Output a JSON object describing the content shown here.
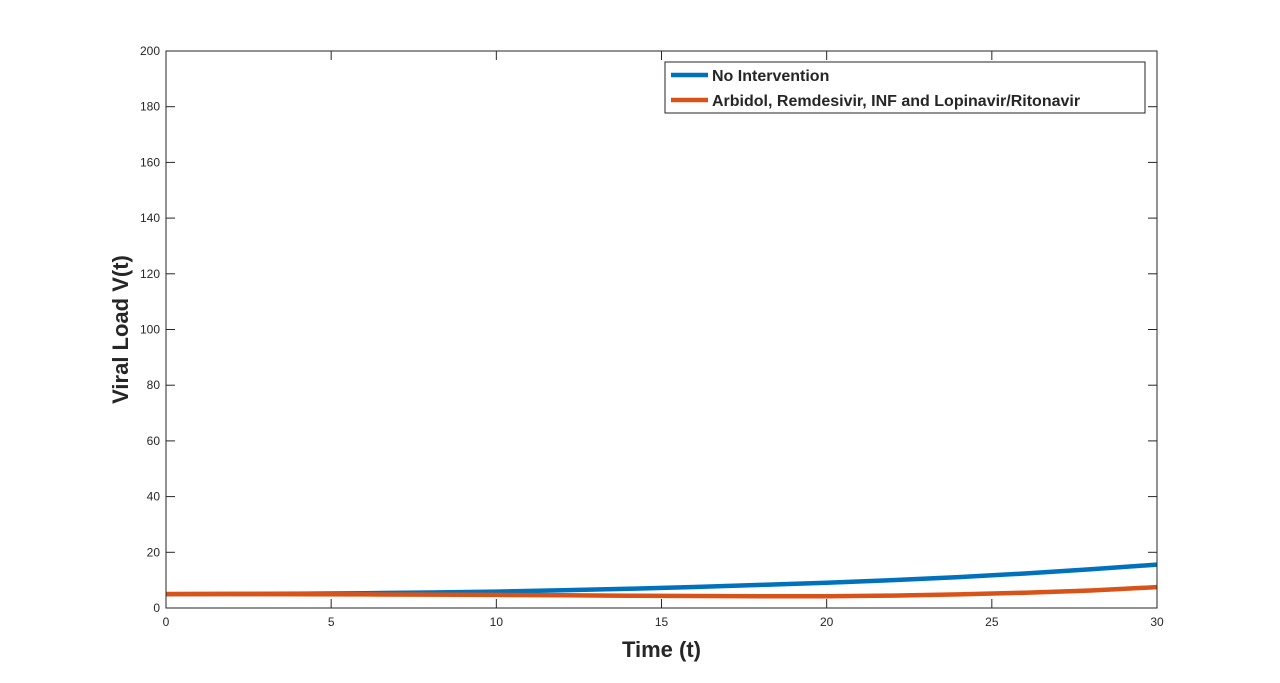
{
  "chart_data": {
    "type": "line",
    "title": "",
    "xlabel": "Time (t)",
    "ylabel": "Viral Load V(t)",
    "xlim": [
      0,
      30
    ],
    "ylim": [
      0,
      200
    ],
    "xticks": [
      0,
      5,
      10,
      15,
      20,
      25,
      30
    ],
    "yticks": [
      0,
      20,
      40,
      60,
      80,
      100,
      120,
      140,
      160,
      180,
      200
    ],
    "grid": false,
    "legend": "top-right",
    "x": [
      0,
      2,
      4,
      6,
      8,
      10,
      12,
      14,
      16,
      18,
      20,
      22,
      24,
      26,
      28,
      30
    ],
    "series": [
      {
        "name": "No Intervention",
        "color": "#0072BD",
        "values": [
          5.0,
          5.05,
          5.15,
          5.3,
          5.55,
          5.9,
          6.35,
          6.9,
          7.55,
          8.3,
          9.1,
          10.0,
          11.1,
          12.4,
          13.9,
          15.6
        ]
      },
      {
        "name": "Arbidol, Remdesivir, INF and Lopinavir/Ritonavir",
        "color": "#D95319",
        "values": [
          5.0,
          5.0,
          4.95,
          4.9,
          4.8,
          4.7,
          4.55,
          4.4,
          4.3,
          4.2,
          4.25,
          4.45,
          4.9,
          5.5,
          6.3,
          7.5
        ]
      }
    ]
  }
}
